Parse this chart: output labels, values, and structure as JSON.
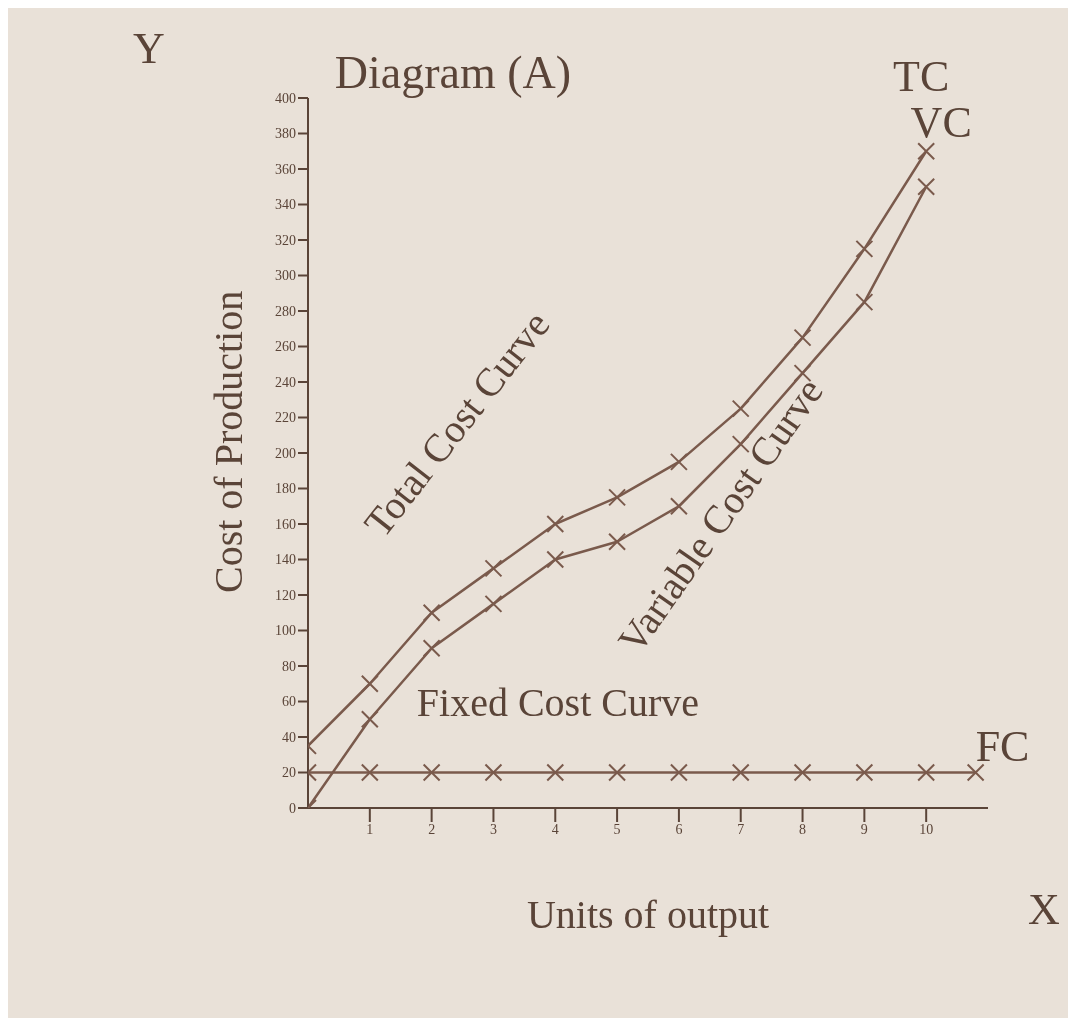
{
  "chart_data": {
    "type": "line",
    "title": "Diagram (A)",
    "xlabel": "Units of output",
    "ylabel": "Cost of Production",
    "series": [
      {
        "name": "TC",
        "color": "#7a5a4c",
        "x": [
          0,
          1,
          2,
          3,
          4,
          5,
          6,
          7,
          8,
          9,
          10
        ],
        "values": [
          35,
          70,
          110,
          135,
          160,
          175,
          195,
          225,
          265,
          315,
          370
        ]
      },
      {
        "name": "VC",
        "color": "#7a5a4c",
        "x": [
          0,
          1,
          2,
          3,
          4,
          5,
          6,
          7,
          8,
          9,
          10
        ],
        "values": [
          0,
          50,
          90,
          115,
          140,
          150,
          170,
          205,
          245,
          285,
          350
        ]
      },
      {
        "name": "FC",
        "color": "#7a5a4c",
        "x": [
          0,
          1,
          2,
          3,
          4,
          5,
          6,
          7,
          8,
          9,
          10,
          10.8
        ],
        "values": [
          20,
          20,
          20,
          20,
          20,
          20,
          20,
          20,
          20,
          20,
          20,
          20
        ]
      }
    ],
    "annotations": [
      "Total Cost Curve",
      "Variable Cost Curve",
      "Fixed Cost Curve",
      "Y",
      "X"
    ],
    "xlim": [
      0,
      11
    ],
    "xticks": [
      1,
      2,
      3,
      4,
      5,
      6,
      7,
      8,
      9,
      10
    ],
    "ylim": [
      0,
      400
    ],
    "yticks": [
      0,
      20,
      40,
      60,
      80,
      100,
      120,
      140,
      160,
      180,
      200,
      220,
      240,
      260,
      280,
      300,
      320,
      340,
      360,
      380,
      400
    ],
    "grid": false,
    "legend": false,
    "marker": "cross",
    "line_style": "solid"
  }
}
